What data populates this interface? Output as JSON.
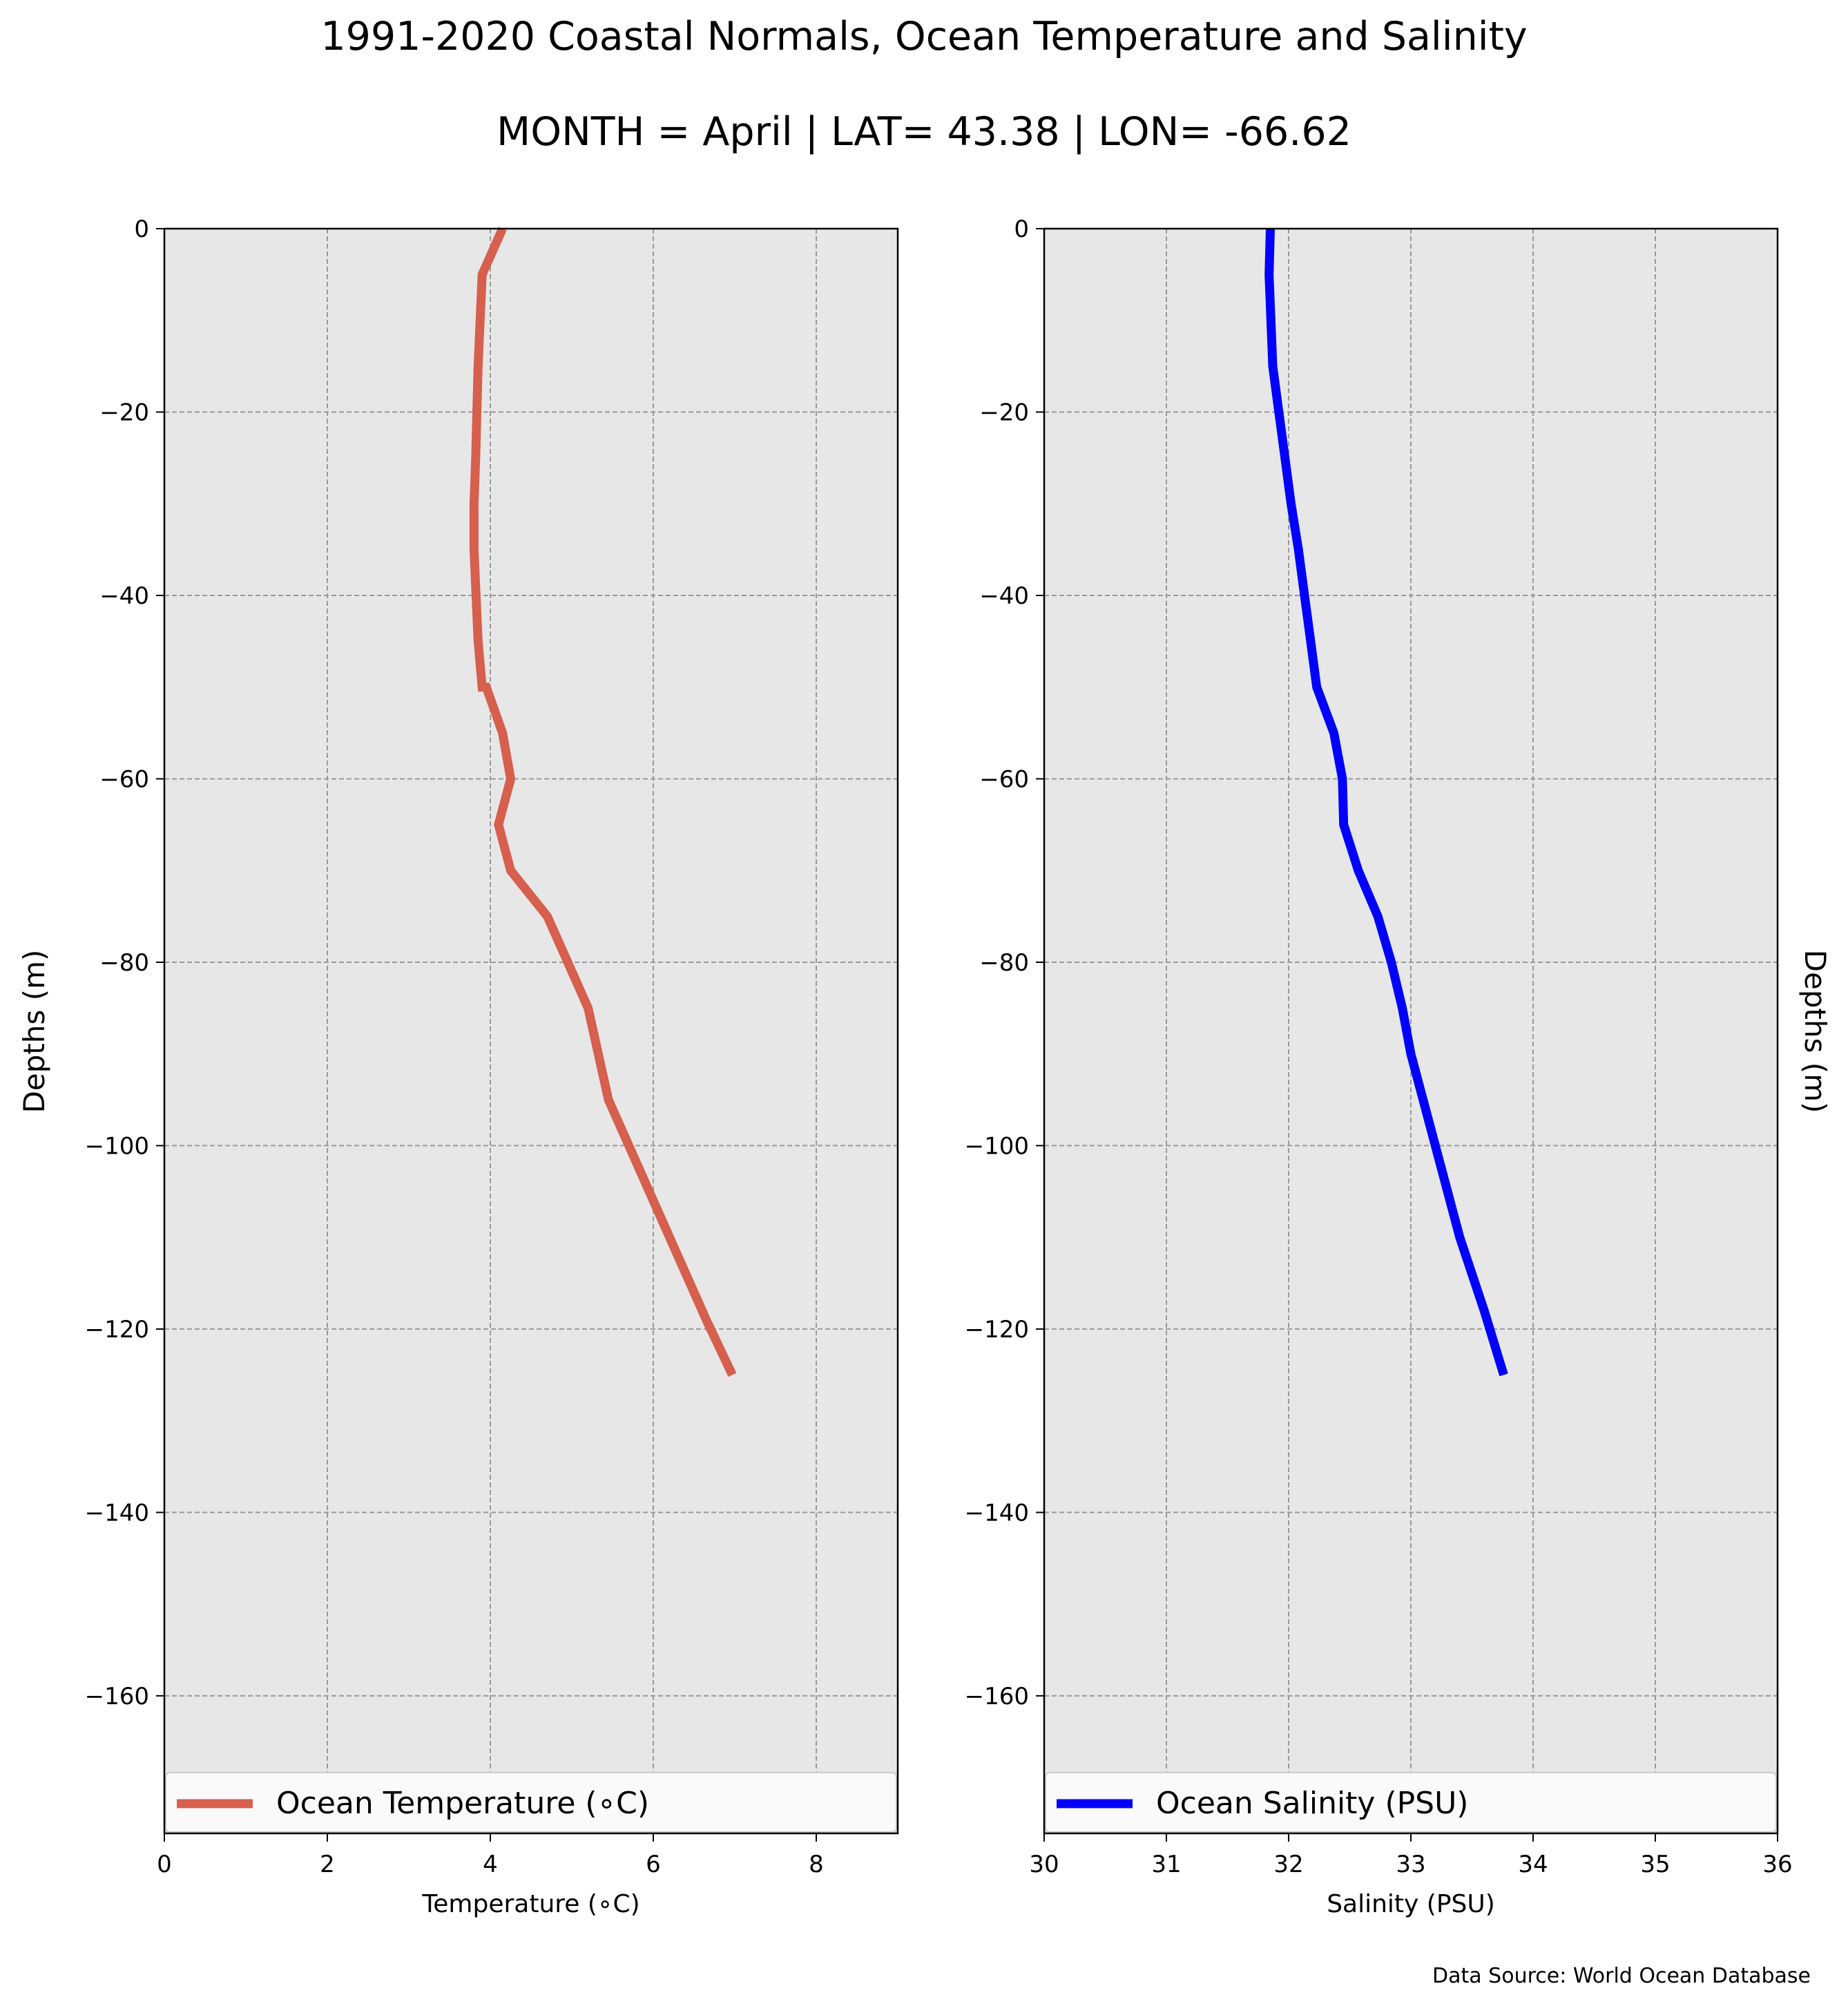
{
  "title": "1991-2020 Coastal Normals, Ocean Temperature and Salinity",
  "subtitle": "MONTH = April | LAT= 43.38 | LON= -66.62",
  "source": "Data Source: World Ocean Database",
  "chart_data": [
    {
      "type": "line",
      "xlabel": "Temperature (∘C)",
      "ylabel": "Depths (m)",
      "xlim": [
        0,
        9
      ],
      "ylim": [
        -175,
        0
      ],
      "xticks": [
        0,
        2,
        4,
        6,
        8
      ],
      "yticks": [
        0,
        -20,
        -40,
        -60,
        -80,
        -100,
        -120,
        -140,
        -160
      ],
      "grid": true,
      "legend_position": "lower-center",
      "series": [
        {
          "name": "Ocean Temperature (∘C)",
          "color": "#d65f4d",
          "x": [
            4.15,
            3.9,
            3.85,
            3.82,
            3.8,
            3.8,
            3.85,
            3.9,
            3.95,
            4.15,
            4.25,
            4.1,
            4.25,
            4.7,
            4.95,
            5.2,
            5.45,
            5.7,
            6.05,
            6.35,
            6.65,
            6.97
          ],
          "y": [
            0,
            -5,
            -15,
            -25,
            -30,
            -35,
            -45,
            -50,
            -50,
            -55,
            -60,
            -65,
            -70,
            -75,
            -80,
            -85,
            -95,
            -100,
            -107,
            -113,
            -119,
            -125
          ]
        }
      ]
    },
    {
      "type": "line",
      "xlabel": "Salinity (PSU)",
      "ylabel": "Depths (m)",
      "xlim": [
        30,
        36
      ],
      "ylim": [
        -175,
        0
      ],
      "xticks": [
        30,
        31,
        32,
        33,
        34,
        35,
        36
      ],
      "yticks": [
        0,
        -20,
        -40,
        -60,
        -80,
        -100,
        -120,
        -140,
        -160
      ],
      "grid": true,
      "legend_position": "lower-center",
      "series": [
        {
          "name": "Ocean Salinity (PSU)",
          "color": "#0000ff",
          "x": [
            31.85,
            31.84,
            31.87,
            31.92,
            31.97,
            32.02,
            32.08,
            32.13,
            32.18,
            32.23,
            32.37,
            32.44,
            32.45,
            32.57,
            32.73,
            32.84,
            32.93,
            33.0,
            33.2,
            33.4,
            33.6,
            33.76
          ],
          "y": [
            0,
            -5,
            -15,
            -20,
            -25,
            -30,
            -35,
            -40,
            -45,
            -50,
            -55,
            -60,
            -65,
            -70,
            -75,
            -80,
            -85,
            -90,
            -100,
            -110,
            -118,
            -125
          ]
        }
      ]
    }
  ]
}
